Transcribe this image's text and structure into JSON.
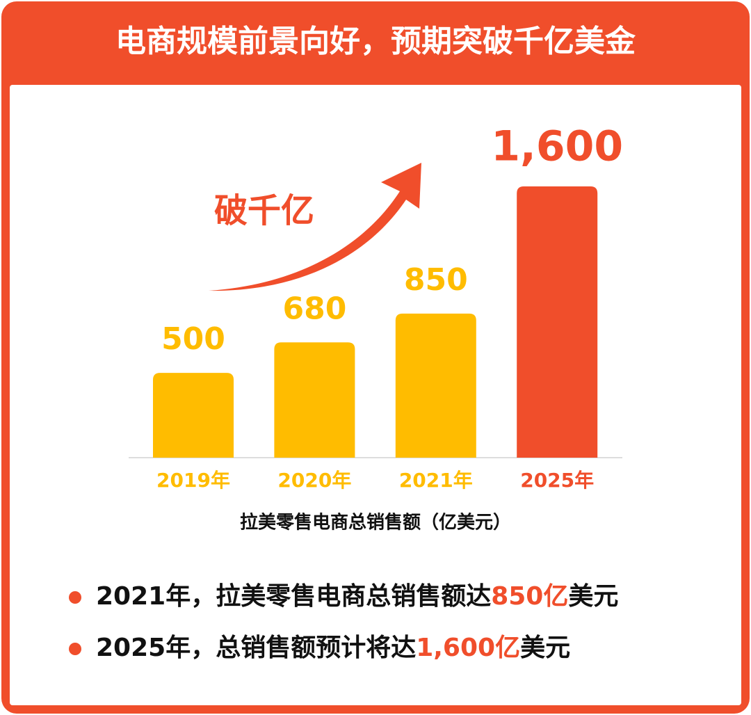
{
  "chart_data": {
    "type": "bar",
    "title": "电商规模前景向好，预期突破千亿美金",
    "annotation": "破千亿",
    "x_label": "拉美零售电商总销售额（亿美元）",
    "categories": [
      "2019年",
      "2020年",
      "2021年",
      "2025年"
    ],
    "values": [
      500,
      680,
      850,
      1600
    ],
    "value_labels": [
      "500",
      "680",
      "850",
      "1,600"
    ],
    "colors": [
      "#ffbc00",
      "#ffbc00",
      "#ffbc00",
      "#f04e2b"
    ]
  },
  "bullets": [
    [
      "2021年，拉美零售电商总销售额达",
      "850亿",
      "美元"
    ],
    [
      "2025年，总销售额预计将达",
      "1,600亿",
      "美元"
    ]
  ]
}
